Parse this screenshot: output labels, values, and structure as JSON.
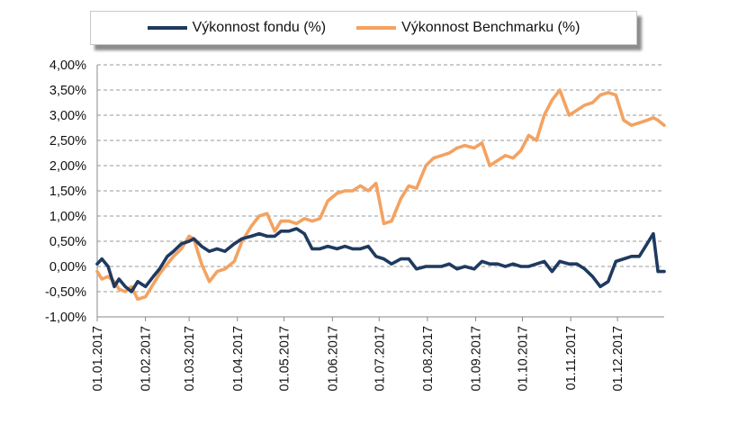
{
  "chart_data": {
    "type": "line",
    "ylim": [
      -1.0,
      4.0
    ],
    "y_ticks": [
      "4,00%",
      "3,50%",
      "3,00%",
      "2,50%",
      "2,00%",
      "1,50%",
      "1,00%",
      "0,50%",
      "0,00%",
      "-0,50%",
      "-1,00%"
    ],
    "y_tick_values": [
      4.0,
      3.5,
      3.0,
      2.5,
      2.0,
      1.5,
      1.0,
      0.5,
      0.0,
      -0.5,
      -1.0
    ],
    "x_ticks": [
      "01.01.2017",
      "01.02.2017",
      "01.03.2017",
      "01.04.2017",
      "01.05.2017",
      "01.06.2017",
      "01.07.2017",
      "01.08.2017",
      "01.09.2017",
      "01.10.2017",
      "01.11.2017",
      "01.12.2017"
    ],
    "x_tick_dates": [
      "2017-01-01",
      "2017-02-01",
      "2017-03-01",
      "2017-04-01",
      "2017-05-01",
      "2017-06-01",
      "2017-07-01",
      "2017-08-01",
      "2017-09-01",
      "2017-10-01",
      "2017-11-01",
      "2017-12-01"
    ],
    "x_range": [
      "2017-01-01",
      "2017-12-31"
    ],
    "grid": "horizontal-dashed",
    "legend_position": "top",
    "series": [
      {
        "name": "Výkonnost fondu (%)",
        "color": "#1f3a5f",
        "x": [
          "2017-01-01",
          "2017-01-04",
          "2017-01-08",
          "2017-01-12",
          "2017-01-15",
          "2017-01-19",
          "2017-01-23",
          "2017-01-27",
          "2017-02-01",
          "2017-02-06",
          "2017-02-10",
          "2017-02-15",
          "2017-02-19",
          "2017-02-24",
          "2017-03-01",
          "2017-03-04",
          "2017-03-09",
          "2017-03-14",
          "2017-03-19",
          "2017-03-24",
          "2017-03-30",
          "2017-04-04",
          "2017-04-10",
          "2017-04-15",
          "2017-04-20",
          "2017-04-25",
          "2017-04-29",
          "2017-05-04",
          "2017-05-09",
          "2017-05-14",
          "2017-05-19",
          "2017-05-24",
          "2017-05-29",
          "2017-06-04",
          "2017-06-09",
          "2017-06-14",
          "2017-06-19",
          "2017-06-24",
          "2017-06-29",
          "2017-07-04",
          "2017-07-09",
          "2017-07-15",
          "2017-07-20",
          "2017-07-25",
          "2017-07-31",
          "2017-08-05",
          "2017-08-10",
          "2017-08-15",
          "2017-08-20",
          "2017-08-25",
          "2017-08-31",
          "2017-09-05",
          "2017-09-10",
          "2017-09-15",
          "2017-09-20",
          "2017-09-25",
          "2017-09-30",
          "2017-10-05",
          "2017-10-10",
          "2017-10-15",
          "2017-10-20",
          "2017-10-25",
          "2017-10-31",
          "2017-11-05",
          "2017-11-10",
          "2017-11-15",
          "2017-11-20",
          "2017-11-25",
          "2017-11-30",
          "2017-12-05",
          "2017-12-10",
          "2017-12-15",
          "2017-12-20",
          "2017-12-24",
          "2017-12-27",
          "2017-12-31"
        ],
        "y": [
          0.05,
          0.15,
          0.0,
          -0.4,
          -0.25,
          -0.4,
          -0.5,
          -0.3,
          -0.4,
          -0.2,
          -0.05,
          0.2,
          0.3,
          0.45,
          0.5,
          0.55,
          0.4,
          0.3,
          0.35,
          0.3,
          0.45,
          0.55,
          0.6,
          0.65,
          0.6,
          0.6,
          0.7,
          0.7,
          0.75,
          0.65,
          0.35,
          0.35,
          0.4,
          0.35,
          0.4,
          0.35,
          0.35,
          0.4,
          0.2,
          0.15,
          0.05,
          0.15,
          0.15,
          -0.05,
          0.0,
          0.0,
          0.0,
          0.05,
          -0.05,
          0.0,
          -0.05,
          0.1,
          0.05,
          0.05,
          0.0,
          0.05,
          0.0,
          0.0,
          0.05,
          0.1,
          -0.1,
          0.1,
          0.05,
          0.05,
          -0.05,
          -0.2,
          -0.4,
          -0.3,
          0.1,
          0.15,
          0.2,
          0.2,
          0.45,
          0.65,
          -0.1,
          -0.1
        ]
      },
      {
        "name": "Výkonnost Benchmarku (%)",
        "color": "#f4a261",
        "x": [
          "2017-01-01",
          "2017-01-04",
          "2017-01-08",
          "2017-01-12",
          "2017-01-15",
          "2017-01-19",
          "2017-01-23",
          "2017-01-27",
          "2017-02-01",
          "2017-02-06",
          "2017-02-10",
          "2017-02-15",
          "2017-02-19",
          "2017-02-24",
          "2017-03-01",
          "2017-03-04",
          "2017-03-09",
          "2017-03-14",
          "2017-03-19",
          "2017-03-24",
          "2017-03-30",
          "2017-04-04",
          "2017-04-10",
          "2017-04-15",
          "2017-04-20",
          "2017-04-25",
          "2017-04-29",
          "2017-05-04",
          "2017-05-09",
          "2017-05-14",
          "2017-05-19",
          "2017-05-24",
          "2017-05-29",
          "2017-06-04",
          "2017-06-09",
          "2017-06-14",
          "2017-06-19",
          "2017-06-24",
          "2017-06-29",
          "2017-07-04",
          "2017-07-09",
          "2017-07-15",
          "2017-07-20",
          "2017-07-25",
          "2017-07-31",
          "2017-08-05",
          "2017-08-10",
          "2017-08-15",
          "2017-08-20",
          "2017-08-25",
          "2017-08-31",
          "2017-09-05",
          "2017-09-10",
          "2017-09-15",
          "2017-09-20",
          "2017-09-25",
          "2017-09-30",
          "2017-10-05",
          "2017-10-10",
          "2017-10-15",
          "2017-10-20",
          "2017-10-25",
          "2017-10-31",
          "2017-11-05",
          "2017-11-10",
          "2017-11-15",
          "2017-11-20",
          "2017-11-25",
          "2017-11-30",
          "2017-12-05",
          "2017-12-10",
          "2017-12-15",
          "2017-12-20",
          "2017-12-24",
          "2017-12-27",
          "2017-12-31"
        ],
        "y": [
          -0.1,
          -0.25,
          -0.2,
          -0.3,
          -0.45,
          -0.5,
          -0.4,
          -0.65,
          -0.6,
          -0.35,
          -0.15,
          0.05,
          0.2,
          0.35,
          0.6,
          0.55,
          0.05,
          -0.3,
          -0.1,
          -0.05,
          0.1,
          0.5,
          0.8,
          1.0,
          1.05,
          0.7,
          0.9,
          0.9,
          0.85,
          0.95,
          0.9,
          0.95,
          1.3,
          1.45,
          1.5,
          1.5,
          1.6,
          1.5,
          1.65,
          0.85,
          0.9,
          1.35,
          1.6,
          1.55,
          2.0,
          2.15,
          2.2,
          2.25,
          2.35,
          2.4,
          2.35,
          2.45,
          2.0,
          2.1,
          2.2,
          2.15,
          2.3,
          2.6,
          2.5,
          3.0,
          3.3,
          3.5,
          3.0,
          3.1,
          3.2,
          3.25,
          3.4,
          3.45,
          3.4,
          2.9,
          2.8,
          2.85,
          2.9,
          2.95,
          2.9,
          2.8
        ]
      }
    ]
  }
}
